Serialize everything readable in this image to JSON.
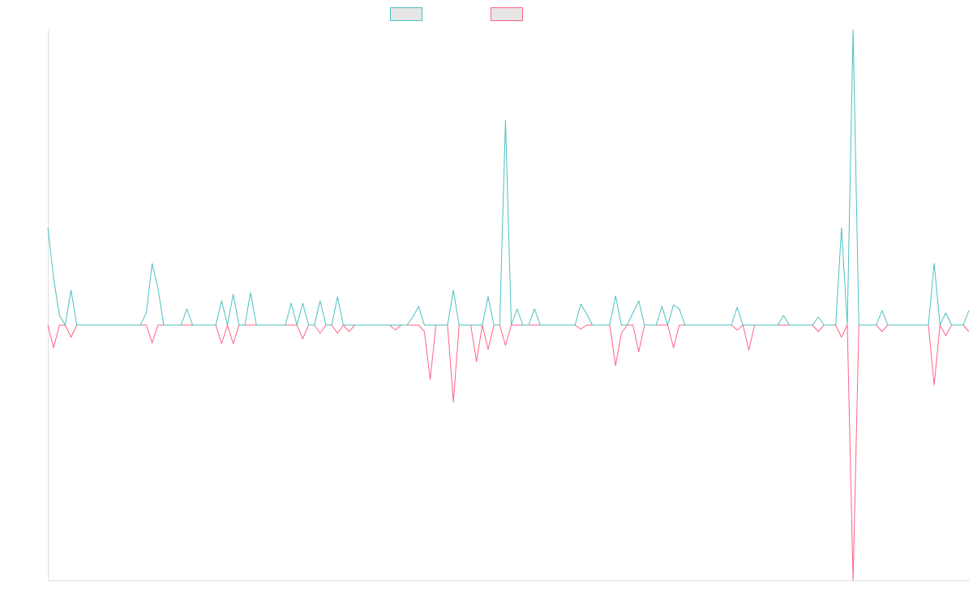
{
  "chart_data": {
    "type": "line",
    "categories": [
      null,
      null,
      null,
      null,
      null,
      null,
      null,
      null,
      null,
      null,
      null,
      null,
      null,
      null,
      null,
      null,
      null,
      null,
      null,
      null,
      null,
      null,
      null,
      null,
      null,
      null,
      null,
      null,
      null,
      null,
      null,
      null,
      null,
      null,
      null,
      null,
      null,
      null,
      null,
      null,
      null,
      null,
      null,
      null,
      null,
      null,
      null,
      null,
      null,
      null,
      null,
      null,
      null,
      null,
      null,
      null,
      null,
      null,
      null,
      null,
      null,
      null,
      null,
      null,
      null,
      null,
      null,
      null,
      null,
      null,
      null,
      null,
      null,
      null,
      null,
      null,
      null,
      null,
      null,
      null,
      null,
      null,
      null,
      null,
      null,
      null,
      null,
      null,
      null,
      null,
      null,
      null,
      null,
      null,
      null,
      null,
      null,
      null,
      null,
      null,
      null,
      null,
      null,
      null,
      null,
      null,
      null,
      null,
      null,
      null,
      null,
      null,
      null,
      null,
      null,
      null,
      null,
      null,
      null,
      null,
      null,
      null,
      null,
      null,
      null,
      null,
      null,
      null,
      null,
      null,
      null,
      null,
      null,
      null,
      null,
      null,
      null,
      null,
      null,
      null,
      null,
      null,
      null,
      null,
      null,
      null,
      null,
      null,
      null,
      null,
      null,
      null,
      null,
      null,
      null,
      null,
      null,
      null,
      null,
      null
    ],
    "series": [
      {
        "color": "#4bc0c0",
        "values": [
          120,
          58,
          12,
          0,
          43,
          0,
          0,
          0,
          0,
          0,
          0,
          0,
          0,
          0,
          0,
          0,
          0,
          15,
          76,
          46,
          0,
          0,
          0,
          0,
          20,
          0,
          0,
          0,
          0,
          0,
          30,
          0,
          38,
          0,
          0,
          40,
          0,
          0,
          0,
          0,
          0,
          0,
          27,
          0,
          27,
          0,
          0,
          30,
          0,
          0,
          35,
          0,
          0,
          0,
          0,
          0,
          0,
          0,
          0,
          0,
          0,
          0,
          0,
          10,
          23,
          0,
          0,
          0,
          0,
          0,
          43,
          0,
          0,
          0,
          0,
          0,
          35,
          0,
          0,
          253,
          0,
          20,
          0,
          0,
          20,
          0,
          0,
          0,
          0,
          0,
          0,
          0,
          26,
          14,
          0,
          0,
          0,
          0,
          36,
          0,
          0,
          15,
          30,
          0,
          0,
          0,
          23,
          0,
          25,
          20,
          0,
          0,
          0,
          0,
          0,
          0,
          0,
          0,
          0,
          22,
          0,
          0,
          0,
          0,
          0,
          0,
          0,
          12,
          0,
          0,
          0,
          0,
          0,
          10,
          0,
          0,
          0,
          120,
          0,
          364,
          0,
          0,
          0,
          0,
          18,
          0,
          0,
          0,
          0,
          0,
          0,
          0,
          0,
          76,
          0,
          15,
          0,
          0,
          0,
          18
        ]
      },
      {
        "color": "#ff6384",
        "values": [
          0,
          -28,
          0,
          0,
          -15,
          0,
          0,
          0,
          0,
          0,
          0,
          0,
          0,
          0,
          0,
          0,
          0,
          0,
          -22,
          0,
          0,
          0,
          0,
          0,
          0,
          0,
          0,
          0,
          0,
          0,
          -23,
          0,
          -23,
          0,
          0,
          0,
          0,
          0,
          0,
          0,
          0,
          0,
          0,
          0,
          -17,
          0,
          0,
          -10,
          0,
          0,
          -10,
          0,
          -8,
          0,
          0,
          0,
          0,
          0,
          0,
          0,
          -6,
          0,
          0,
          0,
          0,
          -8,
          -67,
          0,
          0,
          0,
          -95,
          0,
          0,
          0,
          -45,
          0,
          -30,
          0,
          0,
          -25,
          0,
          0,
          0,
          0,
          0,
          0,
          0,
          0,
          0,
          0,
          0,
          0,
          -5,
          0,
          0,
          0,
          0,
          0,
          -50,
          -10,
          0,
          0,
          -33,
          0,
          0,
          0,
          0,
          0,
          -28,
          0,
          0,
          0,
          0,
          0,
          0,
          0,
          0,
          0,
          0,
          -6,
          0,
          -31,
          0,
          0,
          0,
          0,
          0,
          0,
          0,
          0,
          0,
          0,
          0,
          -8,
          0,
          0,
          0,
          -15,
          0,
          -315,
          0,
          0,
          0,
          0,
          -8,
          0,
          0,
          0,
          0,
          0,
          0,
          0,
          0,
          -74,
          0,
          -13,
          0,
          0,
          0,
          -8
        ]
      }
    ],
    "ylim": [
      -315,
      364
    ]
  }
}
